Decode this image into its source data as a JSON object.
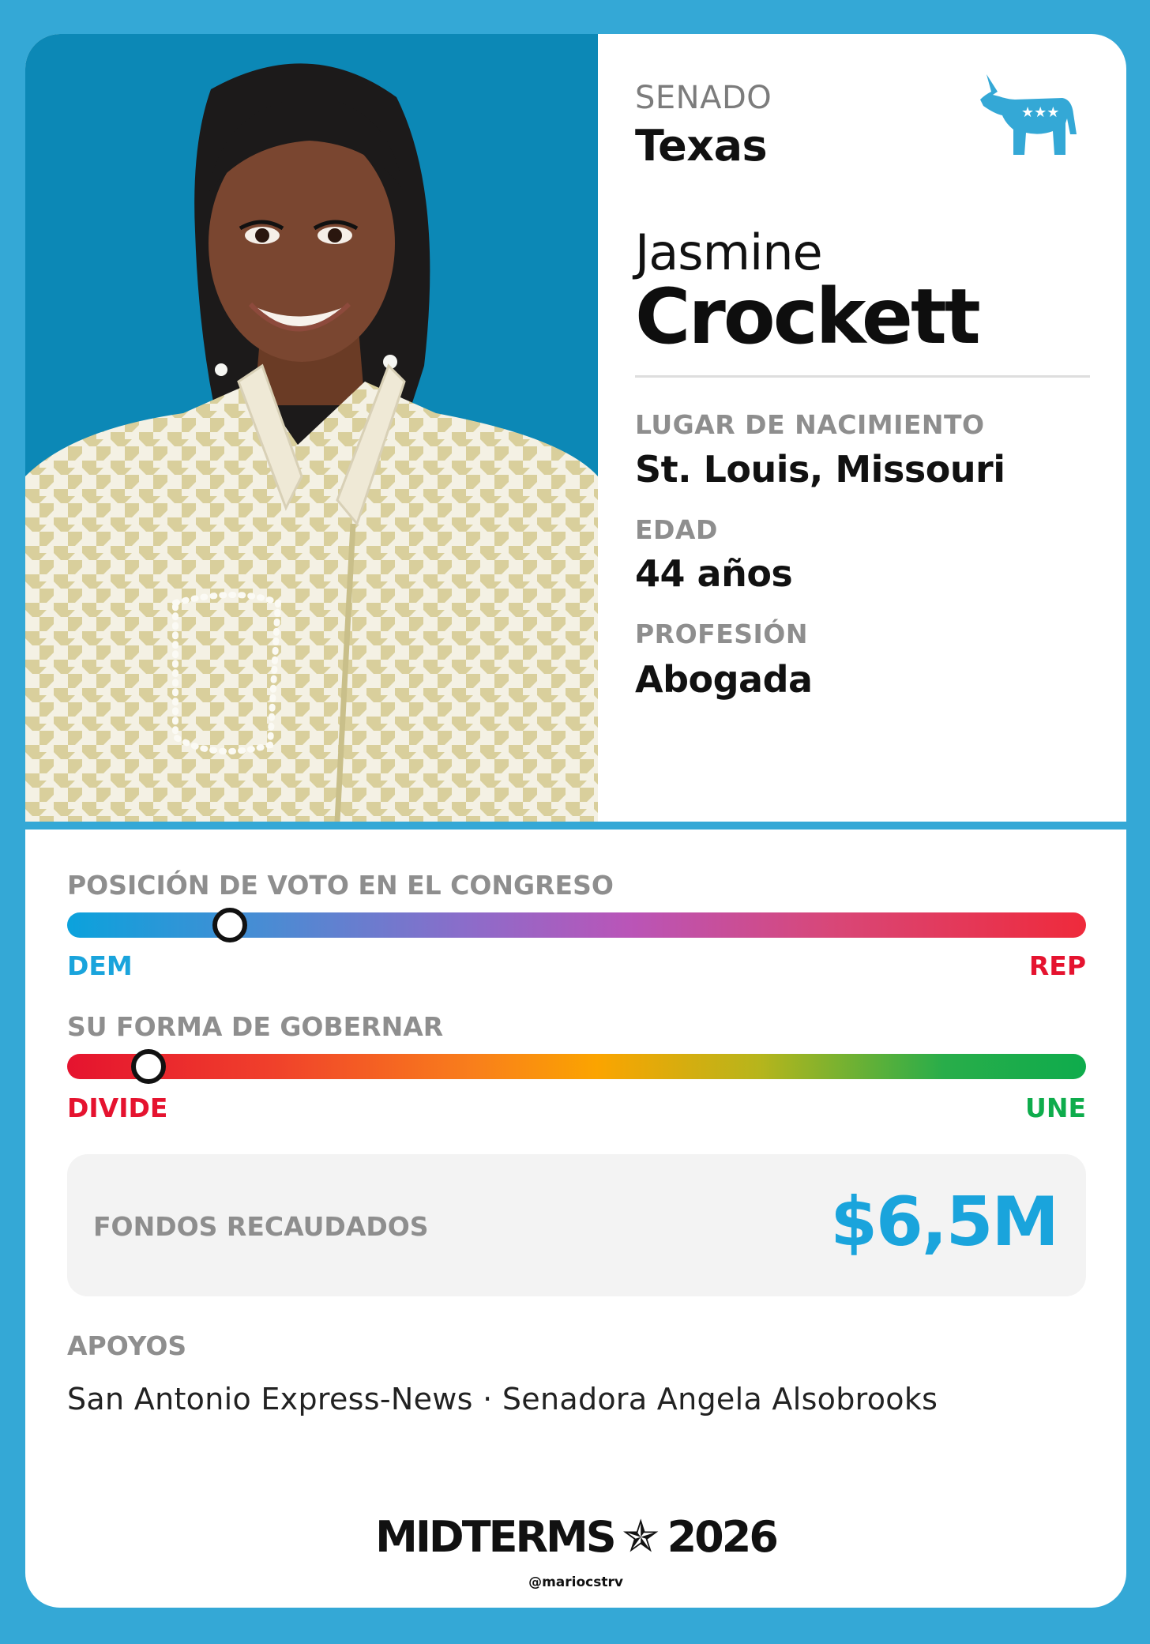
{
  "race": {
    "chamber": "SENADO",
    "state": "Texas"
  },
  "candidate": {
    "first_name": "Jasmine",
    "last_name": "Crockett"
  },
  "party": {
    "icon": "democrat-donkey-icon",
    "color": "#34a8d6"
  },
  "details": [
    {
      "label": "LUGAR DE NACIMIENTO",
      "value": "St. Louis, Missouri"
    },
    {
      "label": "EDAD",
      "value": "44 años"
    },
    {
      "label": "PROFESIÓN",
      "value": "Abogada"
    }
  ],
  "vote_position": {
    "title": "POSICIÓN DE VOTO EN EL CONGRESO",
    "left_label": "DEM",
    "right_label": "REP",
    "left_color": "#0ba2dc",
    "right_color": "#e5132f",
    "level": 0.16
  },
  "governing_style": {
    "title": "SU FORMA DE GOBERNAR",
    "left_label": "DIVIDE",
    "right_label": "UNE",
    "left_color": "#e5132f",
    "right_color": "#0eac4c",
    "level": 0.08
  },
  "funds": {
    "label": "FONDOS RECAUDADOS",
    "value": "$6,5M",
    "color": "#1aa4dc"
  },
  "endorsements": {
    "title": "APOYOS",
    "list": "San Antonio Express-News · Senadora Angela Alsobrooks"
  },
  "footer": {
    "brand_left": "MIDTERMS",
    "brand_icon": "star-icon",
    "brand_right": "2026",
    "handle": "@mariocstrv"
  }
}
